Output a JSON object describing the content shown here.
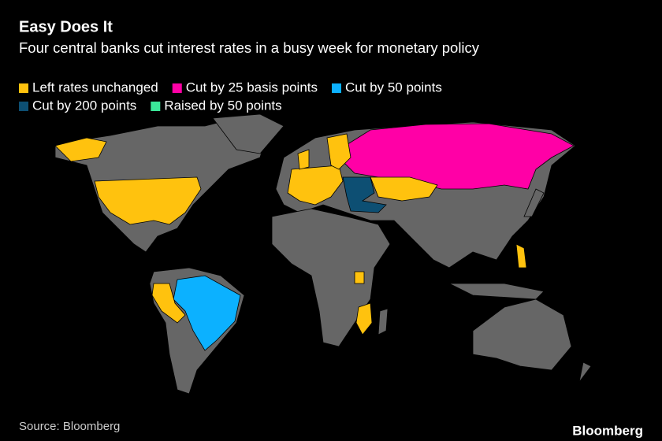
{
  "header": {
    "title": "Easy Does It",
    "subtitle": "Four central banks cut interest rates in a busy week for monetary policy"
  },
  "legend": [
    {
      "label": "Left rates unchanged",
      "color": "#ffc20e"
    },
    {
      "label": "Cut by 25 basis points",
      "color": "#ff00a6"
    },
    {
      "label": "Cut by 50 points",
      "color": "#0cb1ff"
    },
    {
      "label": "Cut by 200 points",
      "color": "#0d4f73"
    },
    {
      "label": "Raised by 50 points",
      "color": "#3be89a"
    }
  ],
  "footer": {
    "source": "Source: Bloomberg",
    "brand": "Bloomberg"
  }
}
